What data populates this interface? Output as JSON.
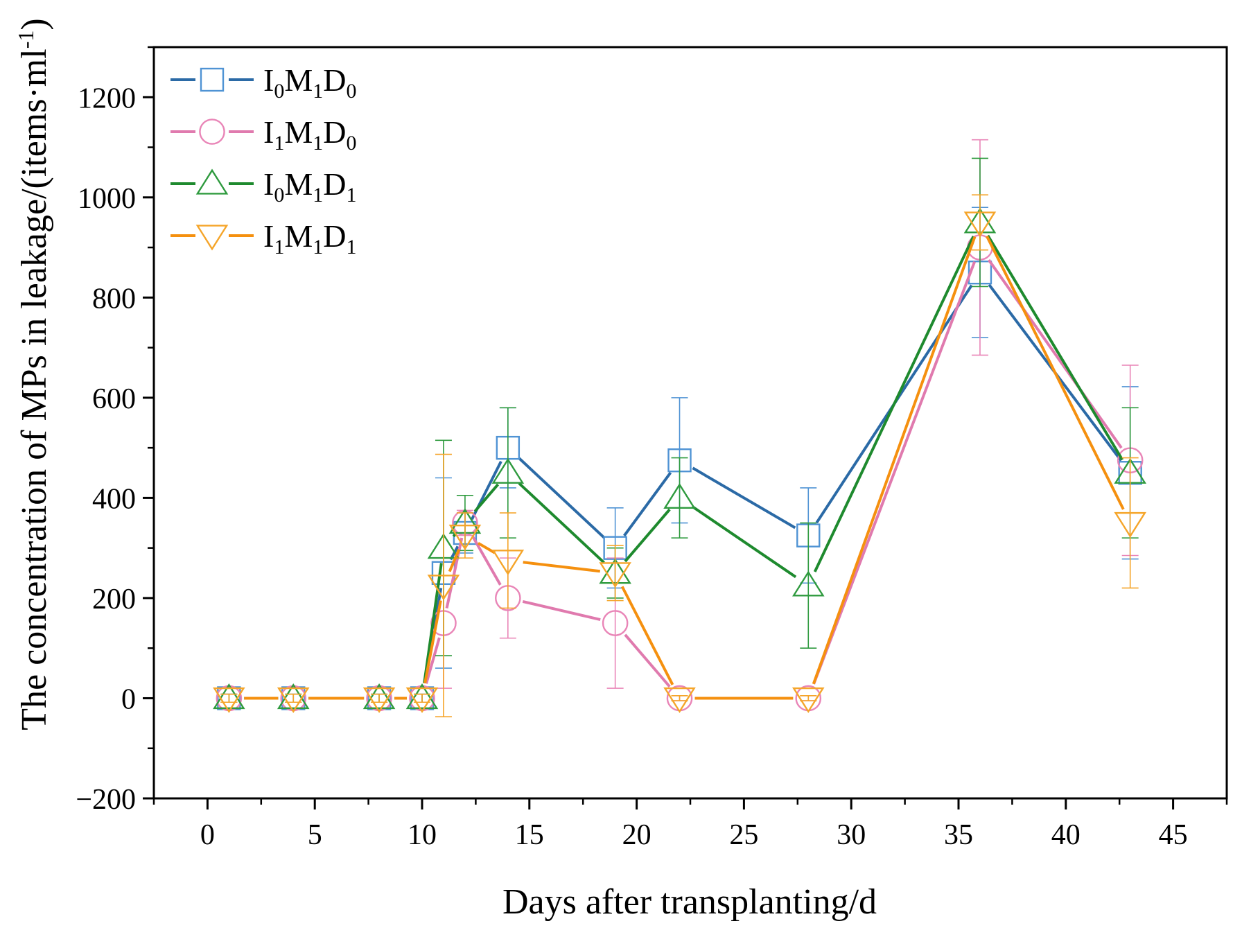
{
  "chart_data": {
    "type": "line",
    "title": "",
    "xlabel": "Days after transplanting/d",
    "ylabel_main": "The concentration of MPs in leakage/(items·ml",
    "ylabel_sup": "-1",
    "ylabel_close": ")",
    "xlim": [
      -2.5,
      47.5
    ],
    "ylim": [
      -200,
      1300
    ],
    "xticks": [
      0,
      5,
      10,
      15,
      20,
      25,
      30,
      35,
      40,
      45
    ],
    "xtick_labels": [
      "0",
      "5",
      "10",
      "15",
      "20",
      "25",
      "30",
      "35",
      "40",
      "45"
    ],
    "yticks": [
      -200,
      0,
      200,
      400,
      600,
      800,
      1000,
      1200
    ],
    "ytick_labels": [
      "−200",
      "0",
      "200",
      "400",
      "600",
      "800",
      "1000",
      "1200"
    ],
    "grid": false,
    "legend_position": "top-left",
    "series": [
      {
        "name": "I0M1D0",
        "legend": {
          "a": "I",
          "as": "0",
          "b": "M",
          "bs": "1",
          "c": "D",
          "cs": "0"
        },
        "line_color": "#2b6aa6",
        "marker_color": "#4f93d4",
        "marker": "square",
        "x": [
          1,
          4,
          8,
          10,
          11,
          12,
          14,
          19,
          22,
          28,
          36,
          43
        ],
        "y": [
          0,
          0,
          0,
          0,
          250,
          330,
          500,
          300,
          475,
          325,
          850,
          450
        ],
        "err": [
          8,
          8,
          8,
          8,
          190,
          40,
          80,
          80,
          125,
          95,
          130,
          172
        ]
      },
      {
        "name": "I1M1D0",
        "legend": {
          "a": "I",
          "as": "1",
          "b": "M",
          "bs": "1",
          "c": "D",
          "cs": "0"
        },
        "line_color": "#e07aae",
        "marker_color": "#e985b7",
        "marker": "circle",
        "x": [
          1,
          4,
          8,
          10,
          11,
          12,
          14,
          19,
          22,
          28,
          36,
          43
        ],
        "y": [
          0,
          0,
          0,
          0,
          150,
          350,
          200,
          150,
          0,
          0,
          900,
          475
        ],
        "err": [
          8,
          8,
          8,
          8,
          130,
          25,
          80,
          130,
          5,
          5,
          215,
          190
        ]
      },
      {
        "name": "I0M1D1",
        "legend": {
          "a": "I",
          "as": "0",
          "b": "M",
          "bs": "1",
          "c": "D",
          "cs": "1"
        },
        "line_color": "#1e8a2e",
        "marker_color": "#2e9a3e",
        "marker": "triangle-up",
        "x": [
          1,
          4,
          8,
          10,
          11,
          12,
          14,
          19,
          22,
          28,
          36,
          43
        ],
        "y": [
          0,
          0,
          0,
          0,
          300,
          350,
          450,
          250,
          400,
          225,
          950,
          450
        ],
        "err": [
          8,
          8,
          8,
          8,
          215,
          55,
          130,
          50,
          80,
          125,
          128,
          130
        ]
      },
      {
        "name": "I1M1D1",
        "legend": {
          "a": "I",
          "as": "1",
          "b": "M",
          "bs": "1",
          "c": "D",
          "cs": "1"
        },
        "line_color": "#f5900f",
        "marker_color": "#f5a52a",
        "marker": "triangle-down",
        "x": [
          1,
          4,
          8,
          10,
          11,
          12,
          14,
          19,
          22,
          28,
          36,
          43
        ],
        "y": [
          0,
          0,
          0,
          0,
          225,
          325,
          275,
          250,
          0,
          0,
          950,
          350
        ],
        "err": [
          8,
          8,
          8,
          8,
          262,
          45,
          95,
          55,
          5,
          5,
          55,
          130
        ]
      }
    ]
  }
}
